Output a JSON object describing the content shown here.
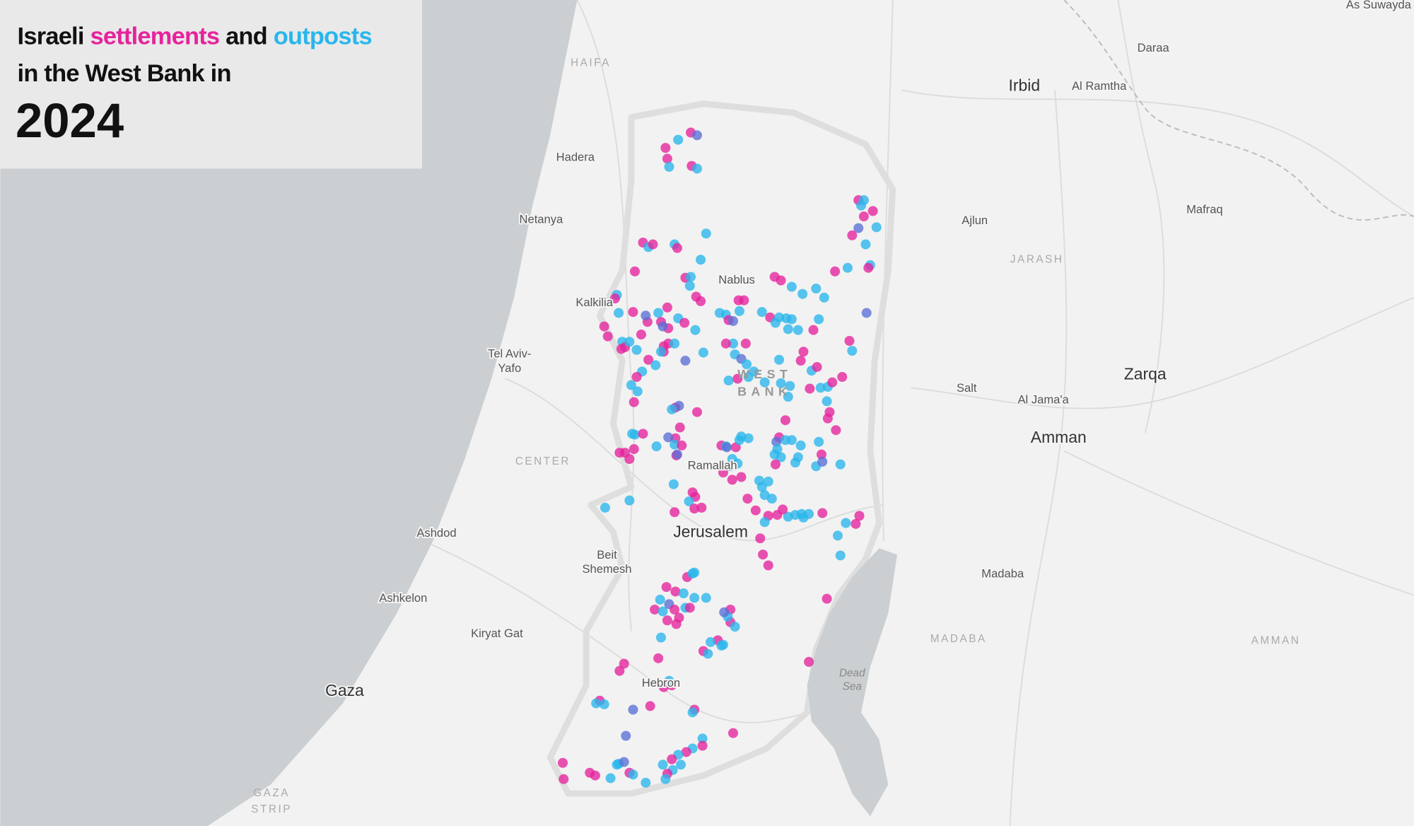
{
  "title": {
    "word1": "Israeli",
    "settlements": "settlements",
    "word2": "and",
    "outposts": "outposts",
    "line2": "in the West Bank in",
    "year": "2024"
  },
  "labels": [
    "HAIFA",
    "Hadera",
    "Netanya",
    "Kalkilia",
    "Nablus",
    "Tel Aviv-",
    "Yafo",
    "WEST",
    "BANK",
    "CENTER",
    "Ramallah",
    "Ashdod",
    "Jerusalem",
    "Beit",
    "Shemesh",
    "Ashkelon",
    "Kiryat Gat",
    "Gaza",
    "Hebron",
    "GAZA",
    "STRIP",
    "Dead",
    "Sea",
    "Irbid",
    "Al Ramtha",
    "Daraa",
    "As Suwayda",
    "Ajlun",
    "Mafraq",
    "JARASH",
    "Salt",
    "Al Jama'a",
    "Zarqa",
    "Amman",
    "Madaba",
    "MADABA",
    "AMMAN"
  ]
}
